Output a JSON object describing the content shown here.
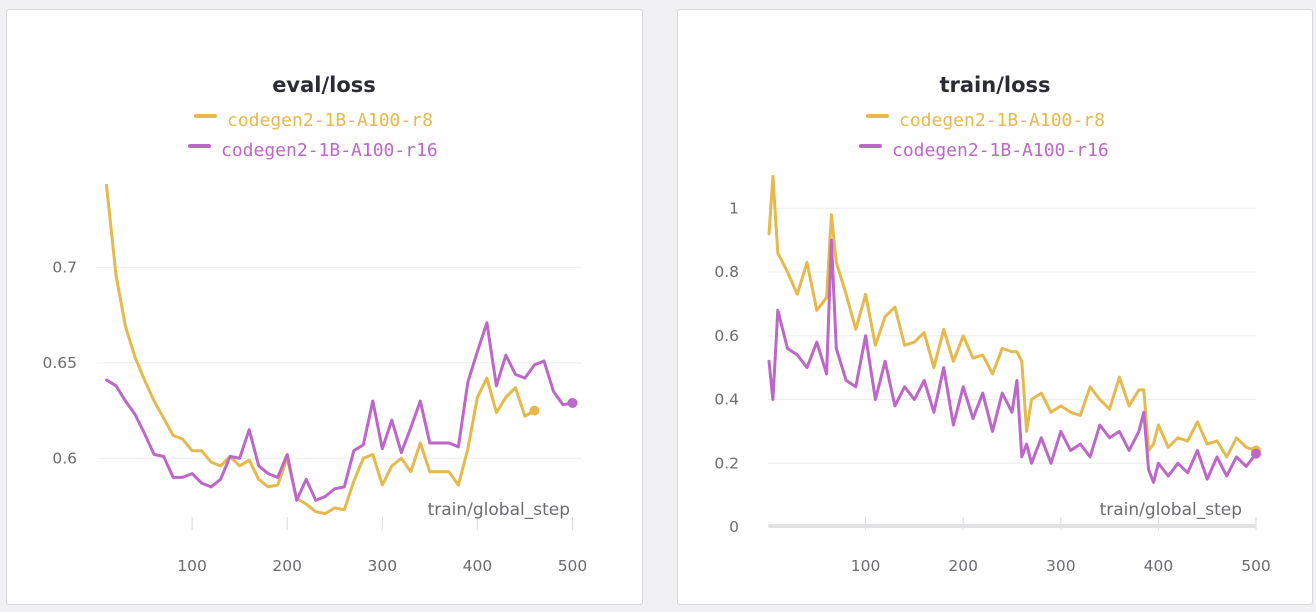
{
  "colors": {
    "series_r8": "#e5b94c",
    "series_r16": "#bd67c8",
    "grid": "#ececee",
    "axis_bar": "#e2e2e4"
  },
  "chart_data": [
    {
      "type": "line",
      "title": "eval/loss",
      "xlabel": "train/global_step",
      "ylabel": "",
      "xlim": [
        0,
        510
      ],
      "ylim": [
        0.564,
        0.75
      ],
      "xticks": [
        100,
        200,
        300,
        400,
        500
      ],
      "yticks": [
        0.6,
        0.65,
        0.7
      ],
      "ytick_labels": [
        "0.6",
        "0.65",
        "0.7"
      ],
      "grid": true,
      "legend_position": "top-center",
      "series": [
        {
          "name": "codegen2-1B-A100-r8",
          "color": "#e5b94c",
          "x": [
            10,
            20,
            30,
            40,
            50,
            60,
            70,
            80,
            90,
            100,
            110,
            120,
            130,
            140,
            150,
            160,
            170,
            180,
            190,
            200,
            210,
            220,
            230,
            240,
            250,
            260,
            270,
            280,
            290,
            300,
            310,
            320,
            330,
            340,
            350,
            360,
            370,
            380,
            390,
            400,
            410,
            420,
            430,
            440,
            450,
            460
          ],
          "values": [
            0.743,
            0.696,
            0.669,
            0.653,
            0.641,
            0.63,
            0.621,
            0.612,
            0.61,
            0.604,
            0.604,
            0.598,
            0.596,
            0.601,
            0.596,
            0.599,
            0.589,
            0.585,
            0.586,
            0.6,
            0.579,
            0.576,
            0.572,
            0.571,
            0.574,
            0.573,
            0.588,
            0.6,
            0.602,
            0.586,
            0.596,
            0.6,
            0.593,
            0.608,
            0.593,
            0.593,
            0.593,
            0.586,
            0.605,
            0.632,
            0.642,
            0.624,
            0.632,
            0.637,
            0.622,
            0.625
          ],
          "end_marker": true
        },
        {
          "name": "codegen2-1B-A100-r16",
          "color": "#bd67c8",
          "x": [
            10,
            20,
            30,
            40,
            50,
            60,
            70,
            80,
            90,
            100,
            110,
            120,
            130,
            140,
            150,
            160,
            170,
            180,
            190,
            200,
            210,
            220,
            230,
            240,
            250,
            260,
            270,
            280,
            290,
            300,
            310,
            320,
            330,
            340,
            350,
            360,
            370,
            380,
            390,
            400,
            410,
            420,
            430,
            440,
            450,
            460,
            470,
            480,
            490,
            500
          ],
          "values": [
            0.641,
            0.638,
            0.63,
            0.623,
            0.613,
            0.602,
            0.601,
            0.59,
            0.59,
            0.592,
            0.587,
            0.585,
            0.589,
            0.601,
            0.6,
            0.615,
            0.596,
            0.592,
            0.59,
            0.602,
            0.578,
            0.589,
            0.578,
            0.58,
            0.584,
            0.585,
            0.604,
            0.607,
            0.63,
            0.605,
            0.62,
            0.603,
            0.616,
            0.63,
            0.608,
            0.608,
            0.608,
            0.606,
            0.64,
            0.656,
            0.671,
            0.638,
            0.654,
            0.644,
            0.642,
            0.649,
            0.651,
            0.635,
            0.628,
            0.629
          ],
          "end_marker": true
        }
      ]
    },
    {
      "type": "line",
      "title": "train/loss",
      "xlabel": "train/global_step",
      "ylabel": "",
      "xlim": [
        0,
        500
      ],
      "ylim": [
        0,
        1.12
      ],
      "xticks": [
        100,
        200,
        300,
        400,
        500
      ],
      "yticks": [
        0,
        0.2,
        0.4,
        0.6,
        0.8,
        1
      ],
      "ytick_labels": [
        "0",
        "0.2",
        "0.4",
        "0.6",
        "0.8",
        "1"
      ],
      "grid": true,
      "legend_position": "top-center",
      "series": [
        {
          "name": "codegen2-1B-A100-r8",
          "color": "#e5b94c",
          "x": [
            1,
            5,
            10,
            20,
            30,
            40,
            50,
            60,
            65,
            70,
            80,
            90,
            100,
            110,
            120,
            130,
            140,
            150,
            160,
            170,
            180,
            190,
            200,
            210,
            220,
            230,
            240,
            250,
            255,
            260,
            265,
            270,
            280,
            290,
            300,
            310,
            320,
            330,
            340,
            350,
            360,
            370,
            380,
            385,
            390,
            395,
            400,
            410,
            420,
            430,
            440,
            450,
            460,
            470,
            480,
            490,
            500
          ],
          "values": [
            0.92,
            1.1,
            0.86,
            0.8,
            0.73,
            0.83,
            0.68,
            0.72,
            0.98,
            0.83,
            0.73,
            0.62,
            0.73,
            0.57,
            0.66,
            0.69,
            0.57,
            0.58,
            0.61,
            0.5,
            0.62,
            0.52,
            0.6,
            0.53,
            0.54,
            0.48,
            0.56,
            0.55,
            0.55,
            0.52,
            0.3,
            0.4,
            0.42,
            0.36,
            0.38,
            0.36,
            0.35,
            0.44,
            0.4,
            0.37,
            0.47,
            0.38,
            0.43,
            0.43,
            0.24,
            0.26,
            0.32,
            0.25,
            0.28,
            0.27,
            0.33,
            0.26,
            0.27,
            0.22,
            0.28,
            0.25,
            0.24
          ],
          "end_marker": true
        },
        {
          "name": "codegen2-1B-A100-r16",
          "color": "#bd67c8",
          "x": [
            1,
            5,
            10,
            20,
            30,
            40,
            50,
            60,
            65,
            70,
            80,
            90,
            100,
            110,
            120,
            130,
            140,
            150,
            160,
            170,
            180,
            190,
            200,
            210,
            220,
            230,
            240,
            250,
            255,
            260,
            265,
            270,
            280,
            290,
            300,
            310,
            320,
            330,
            340,
            350,
            360,
            370,
            380,
            385,
            390,
            395,
            400,
            410,
            420,
            430,
            440,
            450,
            460,
            470,
            480,
            490,
            500
          ],
          "values": [
            0.52,
            0.4,
            0.68,
            0.56,
            0.54,
            0.5,
            0.58,
            0.48,
            0.9,
            0.56,
            0.46,
            0.44,
            0.6,
            0.4,
            0.52,
            0.38,
            0.44,
            0.4,
            0.46,
            0.36,
            0.5,
            0.32,
            0.44,
            0.34,
            0.42,
            0.3,
            0.42,
            0.36,
            0.46,
            0.22,
            0.26,
            0.2,
            0.28,
            0.2,
            0.3,
            0.24,
            0.26,
            0.22,
            0.32,
            0.28,
            0.3,
            0.24,
            0.3,
            0.36,
            0.18,
            0.14,
            0.2,
            0.16,
            0.2,
            0.17,
            0.24,
            0.15,
            0.22,
            0.16,
            0.22,
            0.19,
            0.23
          ],
          "end_marker": true
        }
      ]
    }
  ]
}
